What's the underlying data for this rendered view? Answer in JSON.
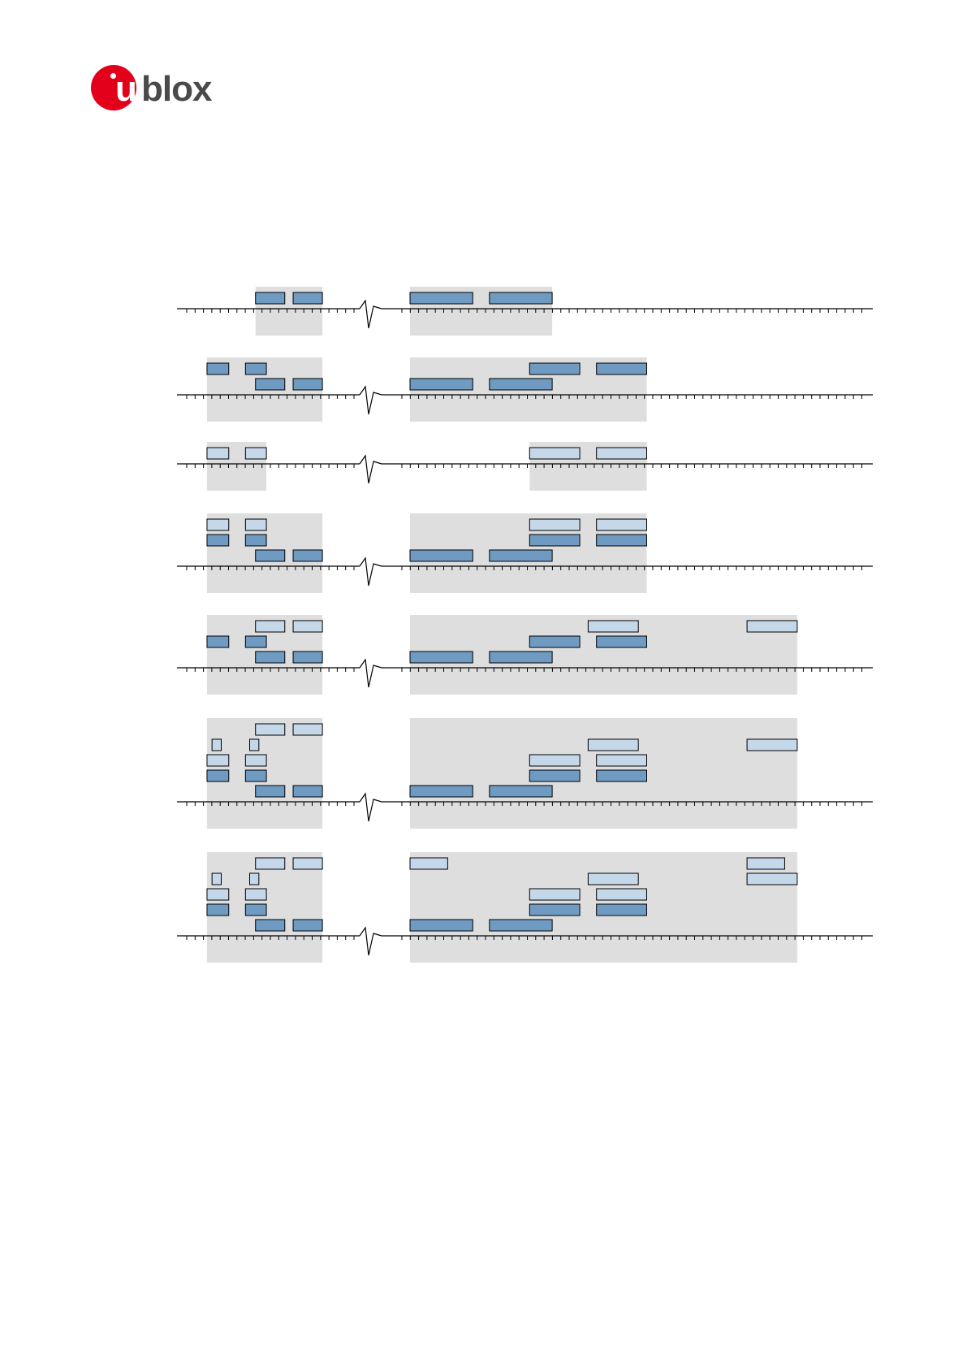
{
  "header": {
    "logo_text": "ublox",
    "logo_u": "u",
    "logo_rest": "blox",
    "brand_color": "#e2001a"
  },
  "diagram": {
    "colors": {
      "dark_block": "#6f9bc3",
      "light_block": "#c5d8ea",
      "shade": "#dedede",
      "line": "#000000"
    },
    "rows": [
      {
        "id": "row-1",
        "blocks": [
          {
            "lane": 0,
            "kind": "dark",
            "start": 9,
            "end": 12.5
          },
          {
            "lane": 0,
            "kind": "dark",
            "start": 13.5,
            "end": 17
          },
          {
            "lane": 0,
            "kind": "dark",
            "start": 26,
            "end": 33.5
          },
          {
            "lane": 0,
            "kind": "dark",
            "start": 35.5,
            "end": 43
          }
        ]
      },
      {
        "id": "row-2",
        "blocks": [
          {
            "lane": 0,
            "kind": "dark",
            "start": 9,
            "end": 12.5
          },
          {
            "lane": 0,
            "kind": "dark",
            "start": 13.5,
            "end": 17
          },
          {
            "lane": 1,
            "kind": "dark",
            "start": 3.2,
            "end": 5.8
          },
          {
            "lane": 1,
            "kind": "dark",
            "start": 7.8,
            "end": 10.3
          },
          {
            "lane": 0,
            "kind": "dark",
            "start": 26,
            "end": 33.5
          },
          {
            "lane": 0,
            "kind": "dark",
            "start": 35.5,
            "end": 43
          },
          {
            "lane": 1,
            "kind": "dark",
            "start": 40.3,
            "end": 46.3
          },
          {
            "lane": 1,
            "kind": "dark",
            "start": 48.3,
            "end": 54.3
          }
        ]
      },
      {
        "id": "row-3",
        "blocks": [
          {
            "lane": 0,
            "kind": "light",
            "start": 3.2,
            "end": 5.8
          },
          {
            "lane": 0,
            "kind": "light",
            "start": 7.8,
            "end": 10.3
          },
          {
            "lane": 0,
            "kind": "light",
            "start": 40.3,
            "end": 46.3
          },
          {
            "lane": 0,
            "kind": "light",
            "start": 48.3,
            "end": 54.3
          }
        ]
      },
      {
        "id": "row-4",
        "blocks": [
          {
            "lane": 0,
            "kind": "dark",
            "start": 9,
            "end": 12.5
          },
          {
            "lane": 0,
            "kind": "dark",
            "start": 13.5,
            "end": 17
          },
          {
            "lane": 1,
            "kind": "dark",
            "start": 3.2,
            "end": 5.8
          },
          {
            "lane": 1,
            "kind": "dark",
            "start": 7.8,
            "end": 10.3
          },
          {
            "lane": 2,
            "kind": "light",
            "start": 3.2,
            "end": 5.8
          },
          {
            "lane": 2,
            "kind": "light",
            "start": 7.8,
            "end": 10.3
          },
          {
            "lane": 0,
            "kind": "dark",
            "start": 26,
            "end": 33.5
          },
          {
            "lane": 0,
            "kind": "dark",
            "start": 35.5,
            "end": 43
          },
          {
            "lane": 1,
            "kind": "dark",
            "start": 40.3,
            "end": 46.3
          },
          {
            "lane": 1,
            "kind": "dark",
            "start": 48.3,
            "end": 54.3
          },
          {
            "lane": 2,
            "kind": "light",
            "start": 40.3,
            "end": 46.3
          },
          {
            "lane": 2,
            "kind": "light",
            "start": 48.3,
            "end": 54.3
          }
        ]
      },
      {
        "id": "row-5",
        "blocks": [
          {
            "lane": 0,
            "kind": "dark",
            "start": 9,
            "end": 12.5
          },
          {
            "lane": 0,
            "kind": "dark",
            "start": 13.5,
            "end": 17
          },
          {
            "lane": 1,
            "kind": "dark",
            "start": 3.2,
            "end": 5.8
          },
          {
            "lane": 1,
            "kind": "dark",
            "start": 7.8,
            "end": 10.3
          },
          {
            "lane": 2,
            "kind": "light",
            "start": 9,
            "end": 12.5
          },
          {
            "lane": 2,
            "kind": "light",
            "start": 13.5,
            "end": 17
          },
          {
            "lane": 0,
            "kind": "dark",
            "start": 26,
            "end": 33.5
          },
          {
            "lane": 0,
            "kind": "dark",
            "start": 35.5,
            "end": 43
          },
          {
            "lane": 1,
            "kind": "dark",
            "start": 40.3,
            "end": 46.3
          },
          {
            "lane": 1,
            "kind": "dark",
            "start": 48.3,
            "end": 54.3
          },
          {
            "lane": 2,
            "kind": "light",
            "start": 47.3,
            "end": 53.3
          },
          {
            "lane": 2,
            "kind": "light",
            "start": 66.3,
            "end": 72.3
          }
        ]
      },
      {
        "id": "row-6",
        "blocks": [
          {
            "lane": 0,
            "kind": "dark",
            "start": 9,
            "end": 12.5
          },
          {
            "lane": 0,
            "kind": "dark",
            "start": 13.5,
            "end": 17
          },
          {
            "lane": 1,
            "kind": "dark",
            "start": 3.2,
            "end": 5.8
          },
          {
            "lane": 1,
            "kind": "dark",
            "start": 7.8,
            "end": 10.3
          },
          {
            "lane": 2,
            "kind": "light",
            "start": 3.2,
            "end": 5.8
          },
          {
            "lane": 2,
            "kind": "light",
            "start": 7.8,
            "end": 10.3
          },
          {
            "lane": 3,
            "kind": "light",
            "start": 3.8,
            "end": 4.9
          },
          {
            "lane": 3,
            "kind": "light",
            "start": 8.3,
            "end": 9.4
          },
          {
            "lane": 4,
            "kind": "light",
            "start": 9,
            "end": 12.5
          },
          {
            "lane": 4,
            "kind": "light",
            "start": 13.5,
            "end": 17
          },
          {
            "lane": 0,
            "kind": "dark",
            "start": 26,
            "end": 33.5
          },
          {
            "lane": 0,
            "kind": "dark",
            "start": 35.5,
            "end": 43
          },
          {
            "lane": 1,
            "kind": "dark",
            "start": 40.3,
            "end": 46.3
          },
          {
            "lane": 1,
            "kind": "dark",
            "start": 48.3,
            "end": 54.3
          },
          {
            "lane": 2,
            "kind": "light",
            "start": 40.3,
            "end": 46.3
          },
          {
            "lane": 2,
            "kind": "light",
            "start": 48.3,
            "end": 54.3
          },
          {
            "lane": 3,
            "kind": "light",
            "start": 47.3,
            "end": 53.3
          },
          {
            "lane": 3,
            "kind": "light",
            "start": 66.3,
            "end": 72.3
          }
        ]
      },
      {
        "id": "row-7",
        "blocks": [
          {
            "lane": 0,
            "kind": "dark",
            "start": 9,
            "end": 12.5
          },
          {
            "lane": 0,
            "kind": "dark",
            "start": 13.5,
            "end": 17
          },
          {
            "lane": 1,
            "kind": "dark",
            "start": 3.2,
            "end": 5.8
          },
          {
            "lane": 1,
            "kind": "dark",
            "start": 7.8,
            "end": 10.3
          },
          {
            "lane": 2,
            "kind": "light",
            "start": 3.2,
            "end": 5.8
          },
          {
            "lane": 2,
            "kind": "light",
            "start": 7.8,
            "end": 10.3
          },
          {
            "lane": 3,
            "kind": "light",
            "start": 3.8,
            "end": 4.9
          },
          {
            "lane": 3,
            "kind": "light",
            "start": 8.3,
            "end": 9.4
          },
          {
            "lane": 4,
            "kind": "light",
            "start": 9,
            "end": 12.5
          },
          {
            "lane": 4,
            "kind": "light",
            "start": 13.5,
            "end": 17
          },
          {
            "lane": 4,
            "kind": "light",
            "start": 26,
            "end": 30.5
          },
          {
            "lane": 0,
            "kind": "dark",
            "start": 26,
            "end": 33.5
          },
          {
            "lane": 0,
            "kind": "dark",
            "start": 35.5,
            "end": 43
          },
          {
            "lane": 1,
            "kind": "dark",
            "start": 40.3,
            "end": 46.3
          },
          {
            "lane": 1,
            "kind": "dark",
            "start": 48.3,
            "end": 54.3
          },
          {
            "lane": 2,
            "kind": "light",
            "start": 40.3,
            "end": 46.3
          },
          {
            "lane": 2,
            "kind": "light",
            "start": 48.3,
            "end": 54.3
          },
          {
            "lane": 3,
            "kind": "light",
            "start": 47.3,
            "end": 53.3
          },
          {
            "lane": 3,
            "kind": "light",
            "start": 66.3,
            "end": 72.3
          },
          {
            "lane": 4,
            "kind": "light",
            "start": 66.3,
            "end": 70.8
          }
        ]
      }
    ]
  }
}
